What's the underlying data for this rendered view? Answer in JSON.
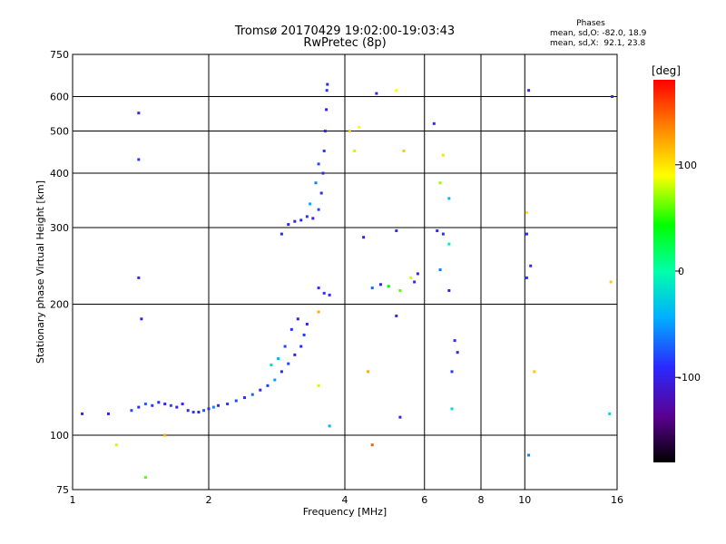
{
  "header": {
    "title": "Tromsø 20170429 19:02:00-19:03:43",
    "subtitle": "RwPretec (8p)",
    "stats_heading": "Phases",
    "stats_o": "mean, sd,O: -82.0, 18.9",
    "stats_x": "mean, sd,X:  92.1, 23.8"
  },
  "chart_data": {
    "type": "scatter",
    "xlabel": "Frequency [MHz]",
    "ylabel": "Stationary phase Virtual Height [km]",
    "x_scale": "log",
    "y_scale": "log",
    "xlim": [
      1,
      16
    ],
    "ylim": [
      75,
      750
    ],
    "x_ticks": [
      1,
      2,
      4,
      6,
      8,
      10,
      16
    ],
    "x_tick_labels": [
      "1",
      "2",
      "4",
      "6",
      "8",
      "10",
      "16"
    ],
    "y_ticks": [
      75,
      100,
      200,
      300,
      400,
      500,
      600,
      750
    ],
    "y_tick_labels": [
      "75",
      "100",
      "200",
      "300",
      "400",
      "500",
      "600",
      "750"
    ],
    "grid": true,
    "colorbar": {
      "label": "[deg]",
      "range": [
        -180,
        180
      ],
      "ticks": [
        -100,
        0,
        100
      ],
      "tick_labels": [
        "-100",
        "0",
        "100"
      ]
    },
    "series": [
      {
        "points": [
          [
            1.05,
            112,
            -95
          ],
          [
            1.2,
            112,
            -100
          ],
          [
            1.35,
            114,
            -80
          ],
          [
            1.4,
            116,
            -90
          ],
          [
            1.45,
            118,
            -70
          ],
          [
            1.5,
            117,
            -85
          ],
          [
            1.55,
            119,
            -90
          ],
          [
            1.6,
            118,
            -95
          ],
          [
            1.65,
            117,
            -80
          ],
          [
            1.7,
            116,
            -100
          ],
          [
            1.75,
            118,
            -90
          ],
          [
            1.8,
            114,
            -95
          ],
          [
            1.85,
            113,
            -85
          ],
          [
            1.9,
            113,
            -100
          ],
          [
            1.95,
            114,
            -75
          ],
          [
            2.0,
            115,
            -90
          ],
          [
            2.05,
            116,
            -60
          ],
          [
            2.1,
            117,
            -95
          ],
          [
            2.2,
            118,
            -85
          ],
          [
            2.3,
            120,
            -80
          ],
          [
            2.4,
            122,
            -90
          ],
          [
            2.5,
            124,
            -70
          ],
          [
            2.6,
            127,
            -95
          ],
          [
            2.7,
            130,
            -85
          ],
          [
            2.8,
            134,
            -50
          ],
          [
            2.9,
            140,
            -90
          ],
          [
            3.0,
            146,
            -80
          ],
          [
            3.1,
            153,
            -100
          ],
          [
            3.2,
            160,
            -90
          ],
          [
            3.25,
            170,
            -85
          ],
          [
            3.3,
            180,
            -95
          ],
          [
            2.85,
            150,
            -40
          ],
          [
            2.95,
            160,
            -80
          ],
          [
            3.05,
            175,
            -90
          ],
          [
            3.15,
            185,
            -100
          ],
          [
            2.75,
            145,
            -20
          ],
          [
            2.9,
            290,
            -90
          ],
          [
            3.0,
            305,
            -95
          ],
          [
            3.1,
            310,
            -100
          ],
          [
            3.2,
            312,
            -90
          ],
          [
            3.3,
            318,
            -85
          ],
          [
            3.4,
            315,
            -95
          ],
          [
            3.5,
            330,
            -80
          ],
          [
            3.55,
            360,
            -90
          ],
          [
            3.58,
            400,
            -95
          ],
          [
            3.6,
            450,
            -85
          ],
          [
            3.62,
            500,
            -90
          ],
          [
            3.64,
            560,
            -95
          ],
          [
            3.65,
            620,
            -85
          ],
          [
            3.66,
            640,
            -90
          ],
          [
            3.45,
            380,
            -60
          ],
          [
            3.5,
            420,
            -80
          ],
          [
            3.35,
            340,
            -45
          ],
          [
            3.5,
            218,
            -90
          ],
          [
            3.6,
            212,
            -85
          ],
          [
            3.7,
            210,
            -95
          ],
          [
            4.6,
            218,
            -70
          ],
          [
            4.8,
            222,
            -100
          ],
          [
            5.0,
            220,
            40
          ],
          [
            5.3,
            215,
            60
          ],
          [
            5.6,
            230,
            80
          ],
          [
            5.7,
            225,
            -90
          ],
          [
            5.8,
            235,
            -95
          ],
          [
            1.4,
            550,
            -95
          ],
          [
            1.4,
            430,
            -85
          ],
          [
            1.4,
            230,
            -90
          ],
          [
            1.42,
            185,
            -100
          ],
          [
            1.45,
            80,
            60
          ],
          [
            1.25,
            95,
            80
          ],
          [
            1.6,
            100,
            120
          ],
          [
            4.7,
            610,
            -95
          ],
          [
            5.2,
            620,
            90
          ],
          [
            4.1,
            500,
            110
          ],
          [
            4.3,
            510,
            90
          ],
          [
            4.2,
            450,
            80
          ],
          [
            5.4,
            450,
            110
          ],
          [
            6.3,
            520,
            -90
          ],
          [
            6.6,
            440,
            100
          ],
          [
            6.5,
            380,
            70
          ],
          [
            6.8,
            350,
            -40
          ],
          [
            6.4,
            295,
            -90
          ],
          [
            6.6,
            290,
            -90
          ],
          [
            6.8,
            275,
            -10
          ],
          [
            4.4,
            285,
            -100
          ],
          [
            5.2,
            295,
            -90
          ],
          [
            6.5,
            240,
            -60
          ],
          [
            6.8,
            215,
            -100
          ],
          [
            7.0,
            165,
            -90
          ],
          [
            7.1,
            155,
            -95
          ],
          [
            6.9,
            140,
            -85
          ],
          [
            6.9,
            115,
            -20
          ],
          [
            5.3,
            110,
            -100
          ],
          [
            5.2,
            188,
            -95
          ],
          [
            4.5,
            140,
            120
          ],
          [
            4.6,
            95,
            150
          ],
          [
            3.7,
            105,
            -40
          ],
          [
            3.5,
            192,
            120
          ],
          [
            3.5,
            130,
            80
          ],
          [
            10.2,
            620,
            -95
          ],
          [
            10.3,
            245,
            -90
          ],
          [
            10.1,
            230,
            -85
          ],
          [
            10.5,
            140,
            110
          ],
          [
            10.1,
            290,
            -90
          ],
          [
            10.2,
            90,
            -60
          ],
          [
            10.1,
            325,
            100
          ],
          [
            15.5,
            225,
            110
          ],
          [
            15.6,
            600,
            -95
          ],
          [
            15.4,
            112,
            -20
          ]
        ]
      }
    ]
  }
}
